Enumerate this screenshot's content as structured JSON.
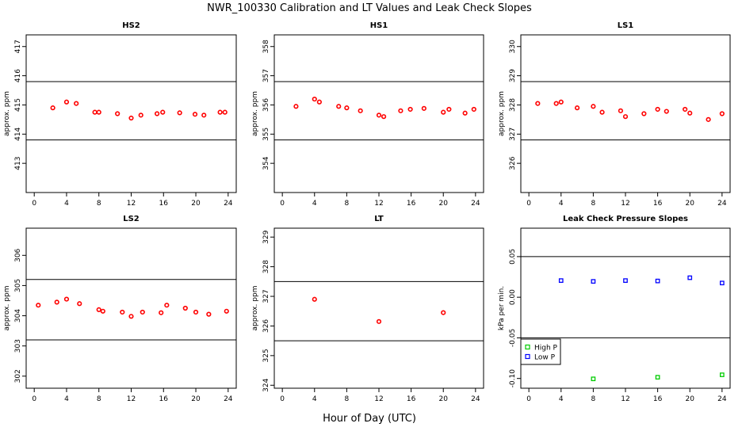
{
  "figure": {
    "title": "NWR_100330  Calibration and LT Values and Leak Check Slopes",
    "xlabel": "Hour of Day (UTC)"
  },
  "chart_data": [
    {
      "type": "scatter",
      "title": "HS2",
      "ylabel": "approx. ppm",
      "xlim": [
        -1,
        25
      ],
      "ylim": [
        412,
        417.4
      ],
      "xticks": [
        0,
        4,
        8,
        12,
        16,
        20,
        24
      ],
      "yticks": [
        413,
        414,
        415,
        416,
        417
      ],
      "hlines": [
        415.8,
        413.8
      ],
      "series": [
        {
          "name": "values",
          "color": "#ff0000",
          "x": [
            2.3,
            4.0,
            5.2,
            7.5,
            8.0,
            10.3,
            12.0,
            13.2,
            15.2,
            15.9,
            18.0,
            19.9,
            21.0,
            23.0,
            23.6
          ],
          "y": [
            414.9,
            415.1,
            415.05,
            414.75,
            414.75,
            414.7,
            414.55,
            414.65,
            414.7,
            414.75,
            414.73,
            414.68,
            414.65,
            414.75,
            414.75
          ]
        }
      ]
    },
    {
      "type": "scatter",
      "title": "HS1",
      "ylabel": "approx. ppm",
      "xlim": [
        -1,
        25
      ],
      "ylim": [
        353,
        358.4
      ],
      "xticks": [
        0,
        4,
        8,
        12,
        16,
        20,
        24
      ],
      "yticks": [
        354,
        355,
        356,
        357,
        358
      ],
      "hlines": [
        356.8,
        354.8
      ],
      "series": [
        {
          "name": "values",
          "color": "#ff0000",
          "x": [
            1.7,
            4.0,
            4.6,
            7.0,
            8.0,
            9.7,
            12.0,
            12.6,
            14.7,
            15.9,
            17.6,
            20.0,
            20.7,
            22.7,
            23.8
          ],
          "y": [
            355.95,
            356.2,
            356.1,
            355.95,
            355.9,
            355.8,
            355.65,
            355.6,
            355.8,
            355.85,
            355.88,
            355.75,
            355.85,
            355.72,
            355.85
          ]
        }
      ]
    },
    {
      "type": "scatter",
      "title": "LS1",
      "ylabel": "approx. ppm",
      "xlim": [
        -1,
        25
      ],
      "ylim": [
        325,
        330.4
      ],
      "xticks": [
        0,
        4,
        8,
        12,
        16,
        20,
        24
      ],
      "yticks": [
        326,
        327,
        328,
        329,
        330
      ],
      "hlines": [
        328.8,
        326.8
      ],
      "series": [
        {
          "name": "values",
          "color": "#ff0000",
          "x": [
            1.1,
            3.4,
            4.0,
            6.0,
            8.0,
            9.1,
            11.4,
            12.0,
            14.3,
            16.0,
            17.1,
            19.4,
            20.0,
            22.3,
            24.0
          ],
          "y": [
            328.05,
            328.05,
            328.1,
            327.9,
            327.95,
            327.75,
            327.8,
            327.6,
            327.7,
            327.85,
            327.78,
            327.85,
            327.72,
            327.5,
            327.7
          ]
        }
      ]
    },
    {
      "type": "scatter",
      "title": "LS2",
      "ylabel": "approx. ppm",
      "xlim": [
        -1,
        25
      ],
      "ylim": [
        301.6,
        306.9
      ],
      "xticks": [
        0,
        4,
        8,
        12,
        16,
        20,
        24
      ],
      "yticks": [
        302,
        303,
        304,
        305,
        306
      ],
      "hlines": [
        305.2,
        303.2
      ],
      "series": [
        {
          "name": "values",
          "color": "#ff0000",
          "x": [
            0.5,
            2.8,
            4.0,
            5.6,
            8.0,
            8.5,
            10.9,
            12.0,
            13.4,
            15.7,
            16.4,
            18.7,
            20.0,
            21.6,
            23.8
          ],
          "y": [
            304.35,
            304.45,
            304.55,
            304.4,
            304.2,
            304.15,
            304.12,
            303.98,
            304.12,
            304.1,
            304.35,
            304.25,
            304.12,
            304.05,
            304.15
          ]
        }
      ]
    },
    {
      "type": "scatter",
      "title": "LT",
      "ylabel": "approx. ppm",
      "xlim": [
        -1,
        25
      ],
      "ylim": [
        323.9,
        329.3
      ],
      "xticks": [
        0,
        4,
        8,
        12,
        16,
        20,
        24
      ],
      "yticks": [
        324,
        325,
        326,
        327,
        328,
        329
      ],
      "hlines": [
        327.5,
        325.5
      ],
      "series": [
        {
          "name": "values",
          "color": "#ff0000",
          "x": [
            4.0,
            12.0,
            20.0
          ],
          "y": [
            326.9,
            326.15,
            326.45
          ]
        }
      ]
    },
    {
      "type": "scatter",
      "title": "Leak Check Pressure Slopes",
      "ylabel": "kPa per min.",
      "xlim": [
        -1,
        25
      ],
      "ylim": [
        -0.112,
        0.085
      ],
      "xticks": [
        0,
        4,
        8,
        12,
        16,
        20,
        24
      ],
      "yticks": [
        -0.1,
        -0.05,
        0.0,
        0.05
      ],
      "ytick_labels": [
        "-0.10",
        "-0.05",
        "0.00",
        "0.05"
      ],
      "hlines": [
        0.05,
        -0.05
      ],
      "legend": {
        "position": "bottom-left",
        "entries": [
          "High P",
          "Low P"
        ]
      },
      "series": [
        {
          "name": "High P",
          "color": "#00cc00",
          "x": [
            8.0,
            16.0,
            24.0
          ],
          "y": [
            -0.1005,
            -0.0985,
            -0.0955
          ]
        },
        {
          "name": "Low P",
          "color": "#0000ff",
          "x": [
            4.0,
            8.0,
            12.0,
            16.0,
            20.0,
            24.0
          ],
          "y": [
            0.0205,
            0.0195,
            0.0205,
            0.02,
            0.024,
            0.0175
          ]
        }
      ]
    }
  ]
}
